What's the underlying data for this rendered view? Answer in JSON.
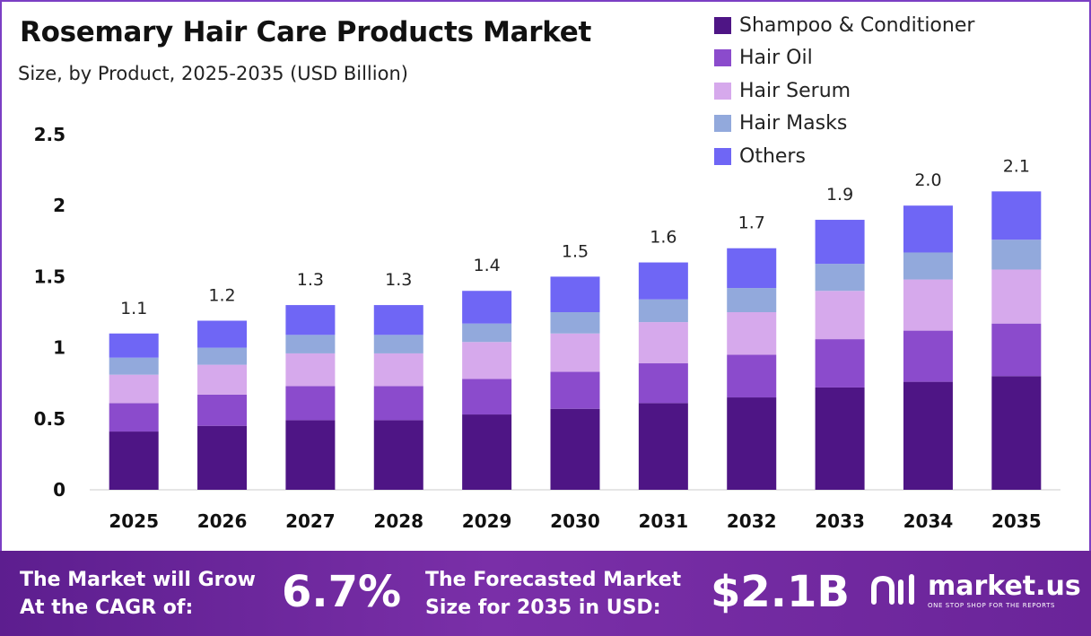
{
  "title": "Rosemary Hair Care Products Market",
  "subtitle": "Size, by Product, 2025-2035 (USD Billion)",
  "colors": {
    "shampoo": "#4e1585",
    "hair_oil": "#8b4bcc",
    "hair_serum": "#d6a9ec",
    "hair_masks": "#92a9dc",
    "others": "#6f66f5",
    "frame": "#7b3fc4"
  },
  "chart_data": {
    "type": "bar",
    "stacked": true,
    "categories": [
      "2025",
      "2026",
      "2027",
      "2028",
      "2029",
      "2030",
      "2031",
      "2032",
      "2033",
      "2034",
      "2035"
    ],
    "series": [
      {
        "name": "Shampoo & Conditioner",
        "color": "#4e1585",
        "values": [
          0.41,
          0.45,
          0.49,
          0.49,
          0.53,
          0.57,
          0.61,
          0.65,
          0.72,
          0.76,
          0.8
        ]
      },
      {
        "name": "Hair Oil",
        "color": "#8b4bcc",
        "values": [
          0.2,
          0.22,
          0.24,
          0.24,
          0.25,
          0.26,
          0.28,
          0.3,
          0.34,
          0.36,
          0.37
        ]
      },
      {
        "name": "Hair Serum",
        "color": "#d6a9ec",
        "values": [
          0.2,
          0.21,
          0.23,
          0.23,
          0.26,
          0.27,
          0.29,
          0.3,
          0.34,
          0.36,
          0.38
        ]
      },
      {
        "name": "Hair Masks",
        "color": "#92a9dc",
        "values": [
          0.12,
          0.12,
          0.13,
          0.13,
          0.13,
          0.15,
          0.16,
          0.17,
          0.19,
          0.19,
          0.21
        ]
      },
      {
        "name": "Others",
        "color": "#6f66f5",
        "values": [
          0.17,
          0.19,
          0.21,
          0.21,
          0.23,
          0.25,
          0.26,
          0.28,
          0.31,
          0.33,
          0.34
        ]
      }
    ],
    "totals": [
      "1.1",
      "1.2",
      "1.3",
      "1.3",
      "1.4",
      "1.5",
      "1.6",
      "1.7",
      "1.9",
      "2.0",
      "2.1"
    ],
    "ylim": [
      0,
      2.5
    ],
    "yticks": [
      "0",
      "0.5",
      "1",
      "1.5",
      "2",
      "2.5"
    ],
    "xlabel": "",
    "ylabel": "",
    "grid": false,
    "legend_position": "top-right"
  },
  "footer": {
    "cagr_line1": "The Market will Grow",
    "cagr_line2": "At the CAGR of:",
    "cagr_value": "6.7%",
    "forecast_line1": "The Forecasted Market",
    "forecast_line2": "Size for 2035 in USD:",
    "forecast_value": "$2.1B",
    "logo_name": "market.us",
    "logo_tagline": "ONE STOP SHOP FOR THE REPORTS",
    "logo_icon": "market-us-logo-icon"
  }
}
